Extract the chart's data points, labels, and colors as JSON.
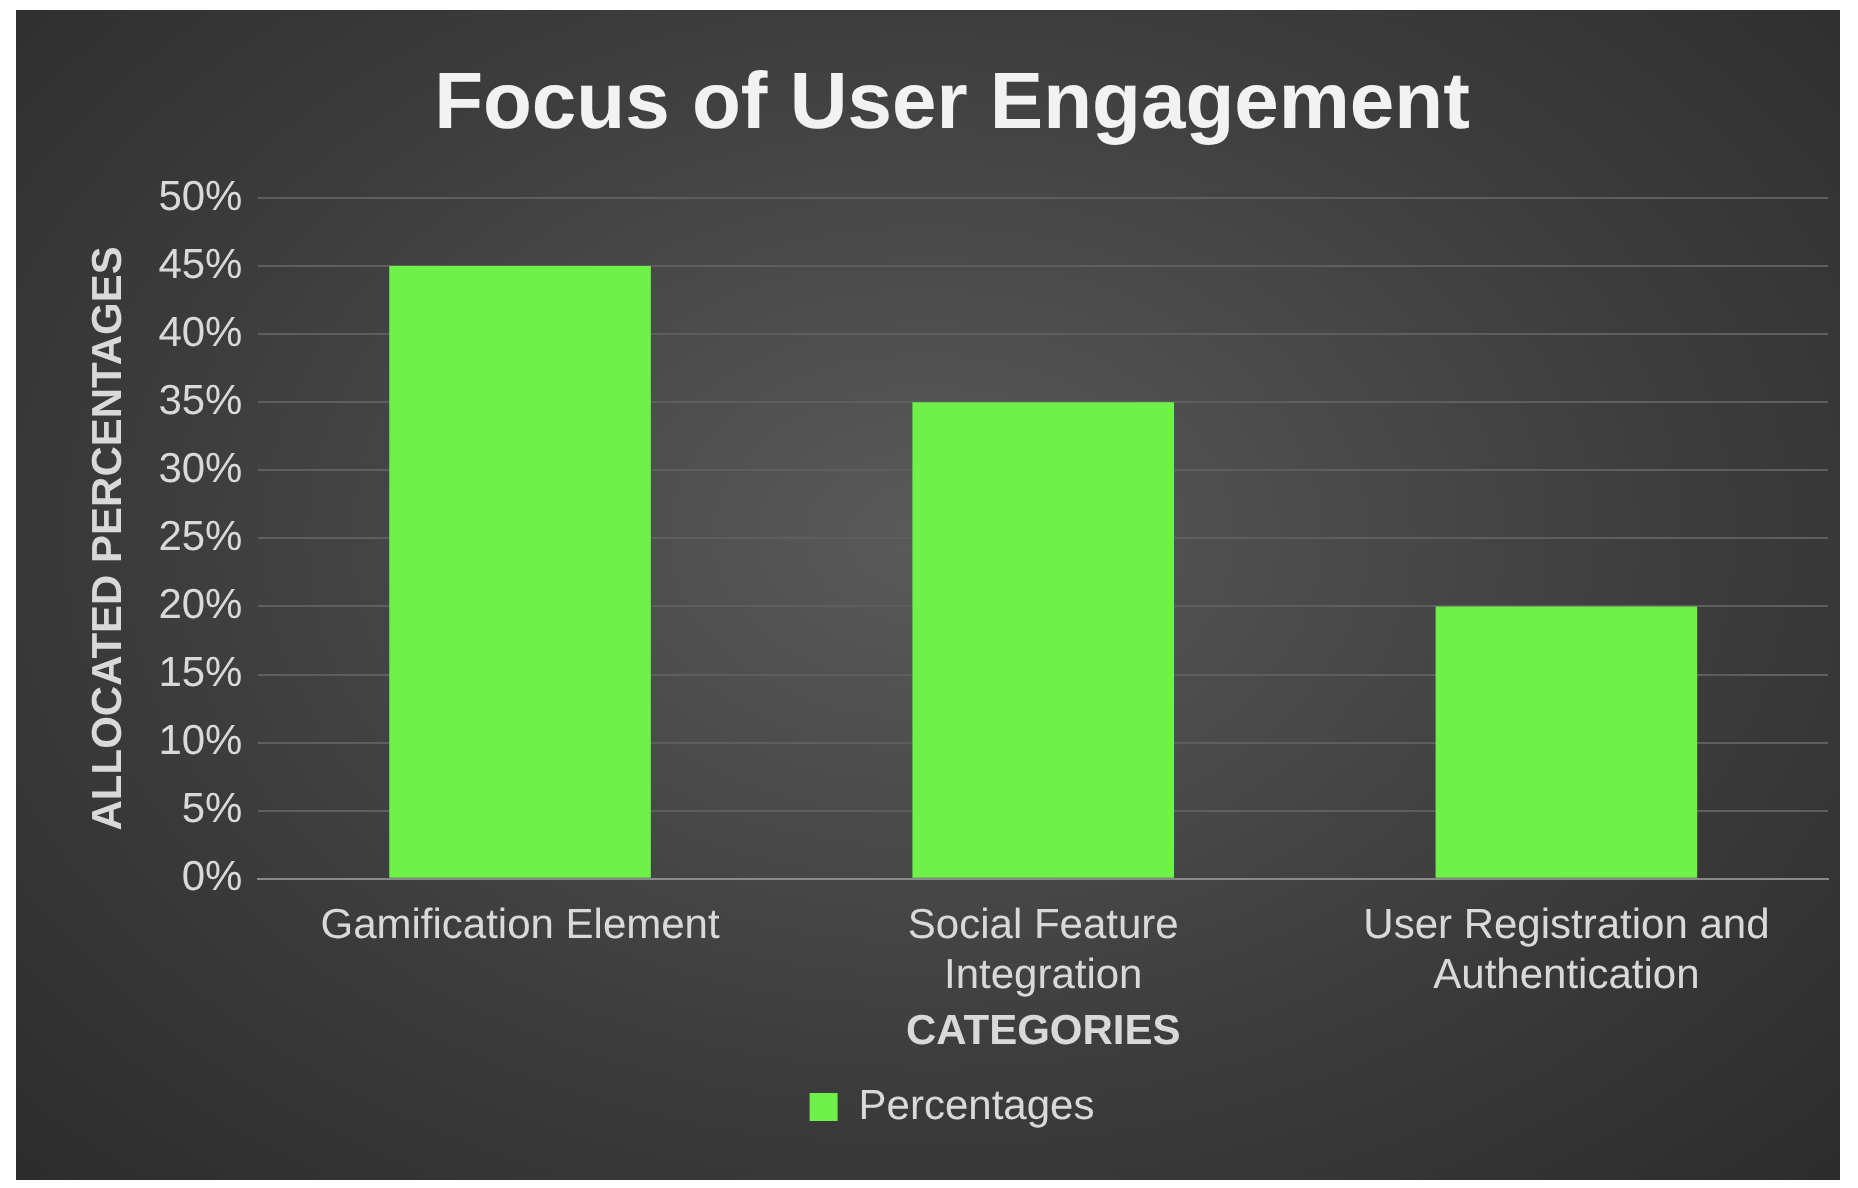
{
  "chart_data": {
    "type": "bar",
    "title": "Focus of User Engagement",
    "xlabel": "CATEGORIES",
    "ylabel": "ALLOCATED PERCENTAGES",
    "categories": [
      "Gamification Element",
      "Social Feature Integration",
      "User Registration and Authentication"
    ],
    "series": [
      {
        "name": "Percentages",
        "color": "#6ef24a",
        "values": [
          45,
          35,
          20
        ]
      }
    ],
    "ylim": [
      0,
      50
    ],
    "yticks": [
      {
        "value": 0,
        "label": "0%"
      },
      {
        "value": 5,
        "label": "5%"
      },
      {
        "value": 10,
        "label": "10%"
      },
      {
        "value": 15,
        "label": "15%"
      },
      {
        "value": 20,
        "label": "20%"
      },
      {
        "value": 25,
        "label": "25%"
      },
      {
        "value": 30,
        "label": "30%"
      },
      {
        "value": 35,
        "label": "35%"
      },
      {
        "value": 40,
        "label": "40%"
      },
      {
        "value": 45,
        "label": "45%"
      },
      {
        "value": 50,
        "label": "50%"
      }
    ],
    "grid": "y",
    "legend": "bottom"
  }
}
